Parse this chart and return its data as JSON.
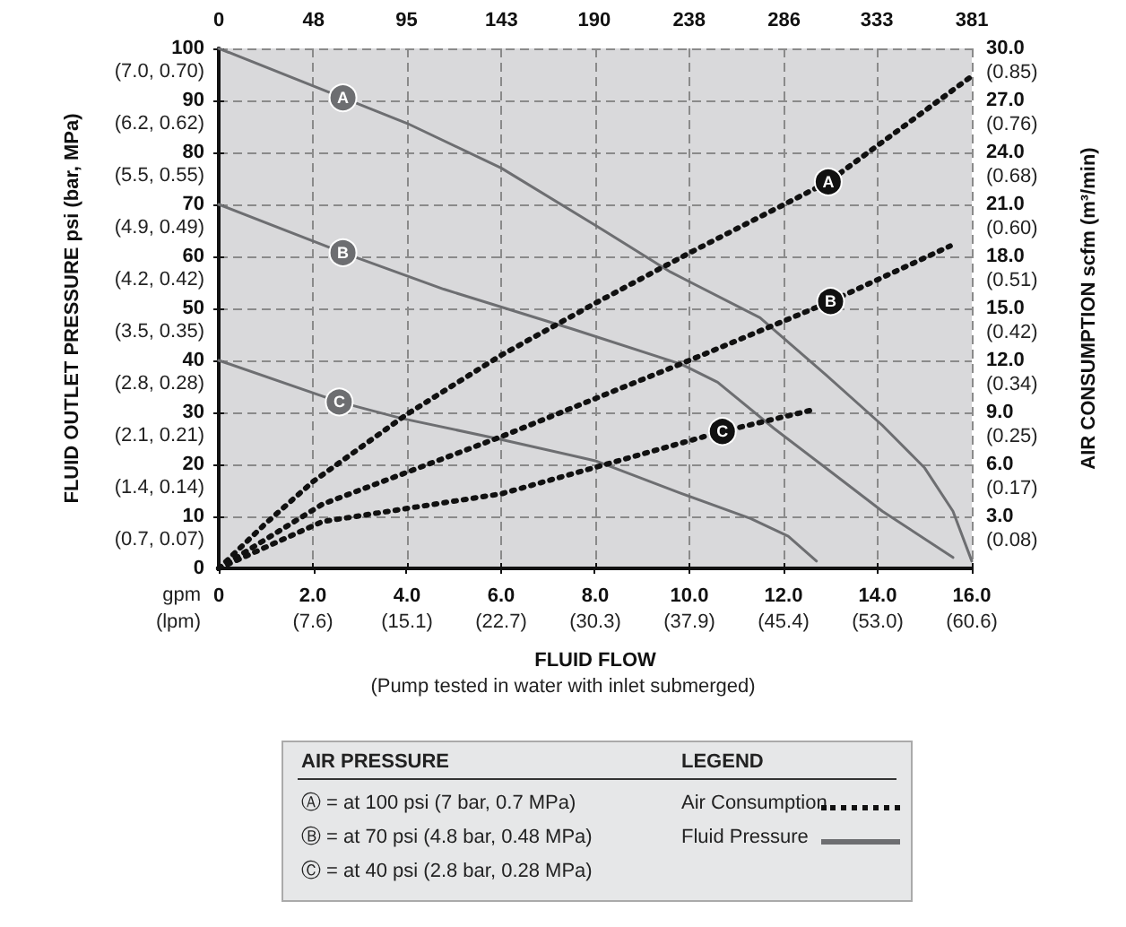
{
  "chart_data": {
    "type": "line",
    "xlabel": "FLUID FLOW",
    "ylabel": "FLUID OUTLET PRESSURE psi (bar, MPa)",
    "y2label": "AIR CONSUMPTION scfm (m³/min)",
    "annotations": [
      "(Pump tested in water with inlet submerged)",
      "gpm\n(lpm)",
      "AIR PRESSURE",
      "LEGEND",
      "Ⓐ = at 100 psi (7 bar, 0.7 MPa)",
      "Ⓑ = at 70 psi (4.8 bar, 0.48 MPa)",
      "Ⓒ = at 40 psi (2.8 bar, 0.28 MPa)",
      "Air Consumption",
      "Fluid Pressure",
      "(7.6)",
      "(15.1)",
      "(22.7)",
      "(30.3)",
      "(37.9)",
      "(45.4)",
      "(53.0)",
      "(60.6)",
      "(0.7, 0.07)",
      "(1.4, 0.14)",
      "(2.1, 0.21)",
      "(2.8, 0.28)",
      "(3.5, 0.35)",
      "(4.2, 0.42)",
      "(4.9, 0.49)",
      "(5.5, 0.55)",
      "(6.2, 0.62)",
      "(7.0, 0.70)"
    ],
    "y3lim": [
      0.04,
      0.89
    ],
    "y3ticks": [
      {
        "value": 0.085,
        "label": "(0.08)"
      },
      {
        "value": 0.17,
        "label": "(0.17)"
      },
      {
        "value": 0.255,
        "label": "(0.25)"
      },
      {
        "value": 0.34,
        "label": "(0.34)"
      },
      {
        "value": 0.425,
        "label": "(0.42)"
      },
      {
        "value": 0.51,
        "label": "(0.51)"
      },
      {
        "value": 0.595,
        "label": "(0.60)"
      },
      {
        "value": 0.68,
        "label": "(0.68)"
      },
      {
        "value": 0.765,
        "label": "(0.76)"
      },
      {
        "value": 0.85,
        "label": "(0.85)"
      }
    ],
    "xlim": [
      0,
      16
    ],
    "xticks": [
      0,
      {
        "value": 2,
        "label": "2.0"
      },
      {
        "value": 4,
        "label": "4.0"
      },
      {
        "value": 6,
        "label": "6.0"
      },
      {
        "value": 8,
        "label": "8.0"
      },
      {
        "value": 10,
        "label": "10.0"
      },
      {
        "value": 12,
        "label": "12.0"
      },
      {
        "value": 14,
        "label": "14.0"
      },
      {
        "value": 16,
        "label": "16.0"
      }
    ],
    "x2lim": [
      0,
      381
    ],
    "x2ticks": [
      0,
      48,
      95,
      143,
      190,
      238,
      286,
      333,
      381
    ],
    "ylim": [
      0,
      100
    ],
    "yticks": [
      0,
      10,
      20,
      30,
      40,
      50,
      60,
      70,
      80,
      90,
      100
    ],
    "y2lim": [
      0,
      30
    ],
    "y2ticks": [
      {
        "value": 3,
        "label": "3.0"
      },
      {
        "value": 6,
        "label": "6.0"
      },
      {
        "value": 9,
        "label": "9.0"
      },
      {
        "value": 12,
        "label": "12.0"
      },
      {
        "value": 15,
        "label": "15.0"
      },
      {
        "value": 18,
        "label": "18.0"
      },
      {
        "value": 21,
        "label": "21.0"
      },
      {
        "value": 24,
        "label": "24.0"
      },
      {
        "value": 27,
        "label": "27.0"
      },
      {
        "value": 30,
        "label": "30.0"
      }
    ],
    "grid": true,
    "marker": "none",
    "series": [
      {
        "name": "A",
        "color": "#6d6e71",
        "line_style": "solid",
        "x": [
          0,
          2.64,
          4,
          6,
          8,
          9.6,
          11.5,
          12.9,
          14.1,
          15,
          15.6,
          16
        ],
        "values": [
          100,
          90.5,
          85.6,
          77,
          66,
          57,
          48.2,
          37.2,
          27.5,
          19.3,
          11,
          1.4
        ]
      },
      {
        "name": "B",
        "color": "#6d6e71",
        "line_style": "solid",
        "x": [
          0,
          2.64,
          4.78,
          7.53,
          9.82,
          10.6,
          11.8,
          12.9,
          14.1,
          15.6
        ],
        "values": [
          70,
          60.7,
          53.7,
          46,
          39.3,
          35.8,
          26.9,
          19.3,
          11,
          2.1
        ]
      },
      {
        "name": "C",
        "color": "#6d6e71",
        "line_style": "solid",
        "x": [
          0,
          2.56,
          3.86,
          6,
          8,
          9.8,
          11.3,
          12.1,
          12.7
        ],
        "values": [
          40,
          32,
          28.9,
          24.8,
          20.7,
          14.5,
          9.6,
          6.2,
          1.4
        ]
      },
      {
        "name": "A",
        "color": "#111111",
        "line_style": "dotted",
        "axis": "y2",
        "x": [
          0,
          1,
          2,
          4,
          6,
          8,
          10,
          12.95,
          16
        ],
        "values": [
          0,
          2.6,
          5,
          8.9,
          12.3,
          15.3,
          18.2,
          22.3,
          28.4
        ]
      },
      {
        "name": "B",
        "color": "#111111",
        "line_style": "dotted",
        "axis": "y2",
        "x": [
          0,
          2.2,
          6,
          9.82,
          13,
          15.54
        ],
        "values": [
          0,
          3.7,
          7.6,
          11.8,
          15.4,
          18.6
        ]
      },
      {
        "name": "C",
        "color": "#111111",
        "line_style": "dotted",
        "axis": "y2",
        "x": [
          0,
          2.2,
          6,
          10.7,
          12.7
        ],
        "values": [
          0,
          2.7,
          4.3,
          7.9,
          9.2
        ]
      }
    ]
  }
}
